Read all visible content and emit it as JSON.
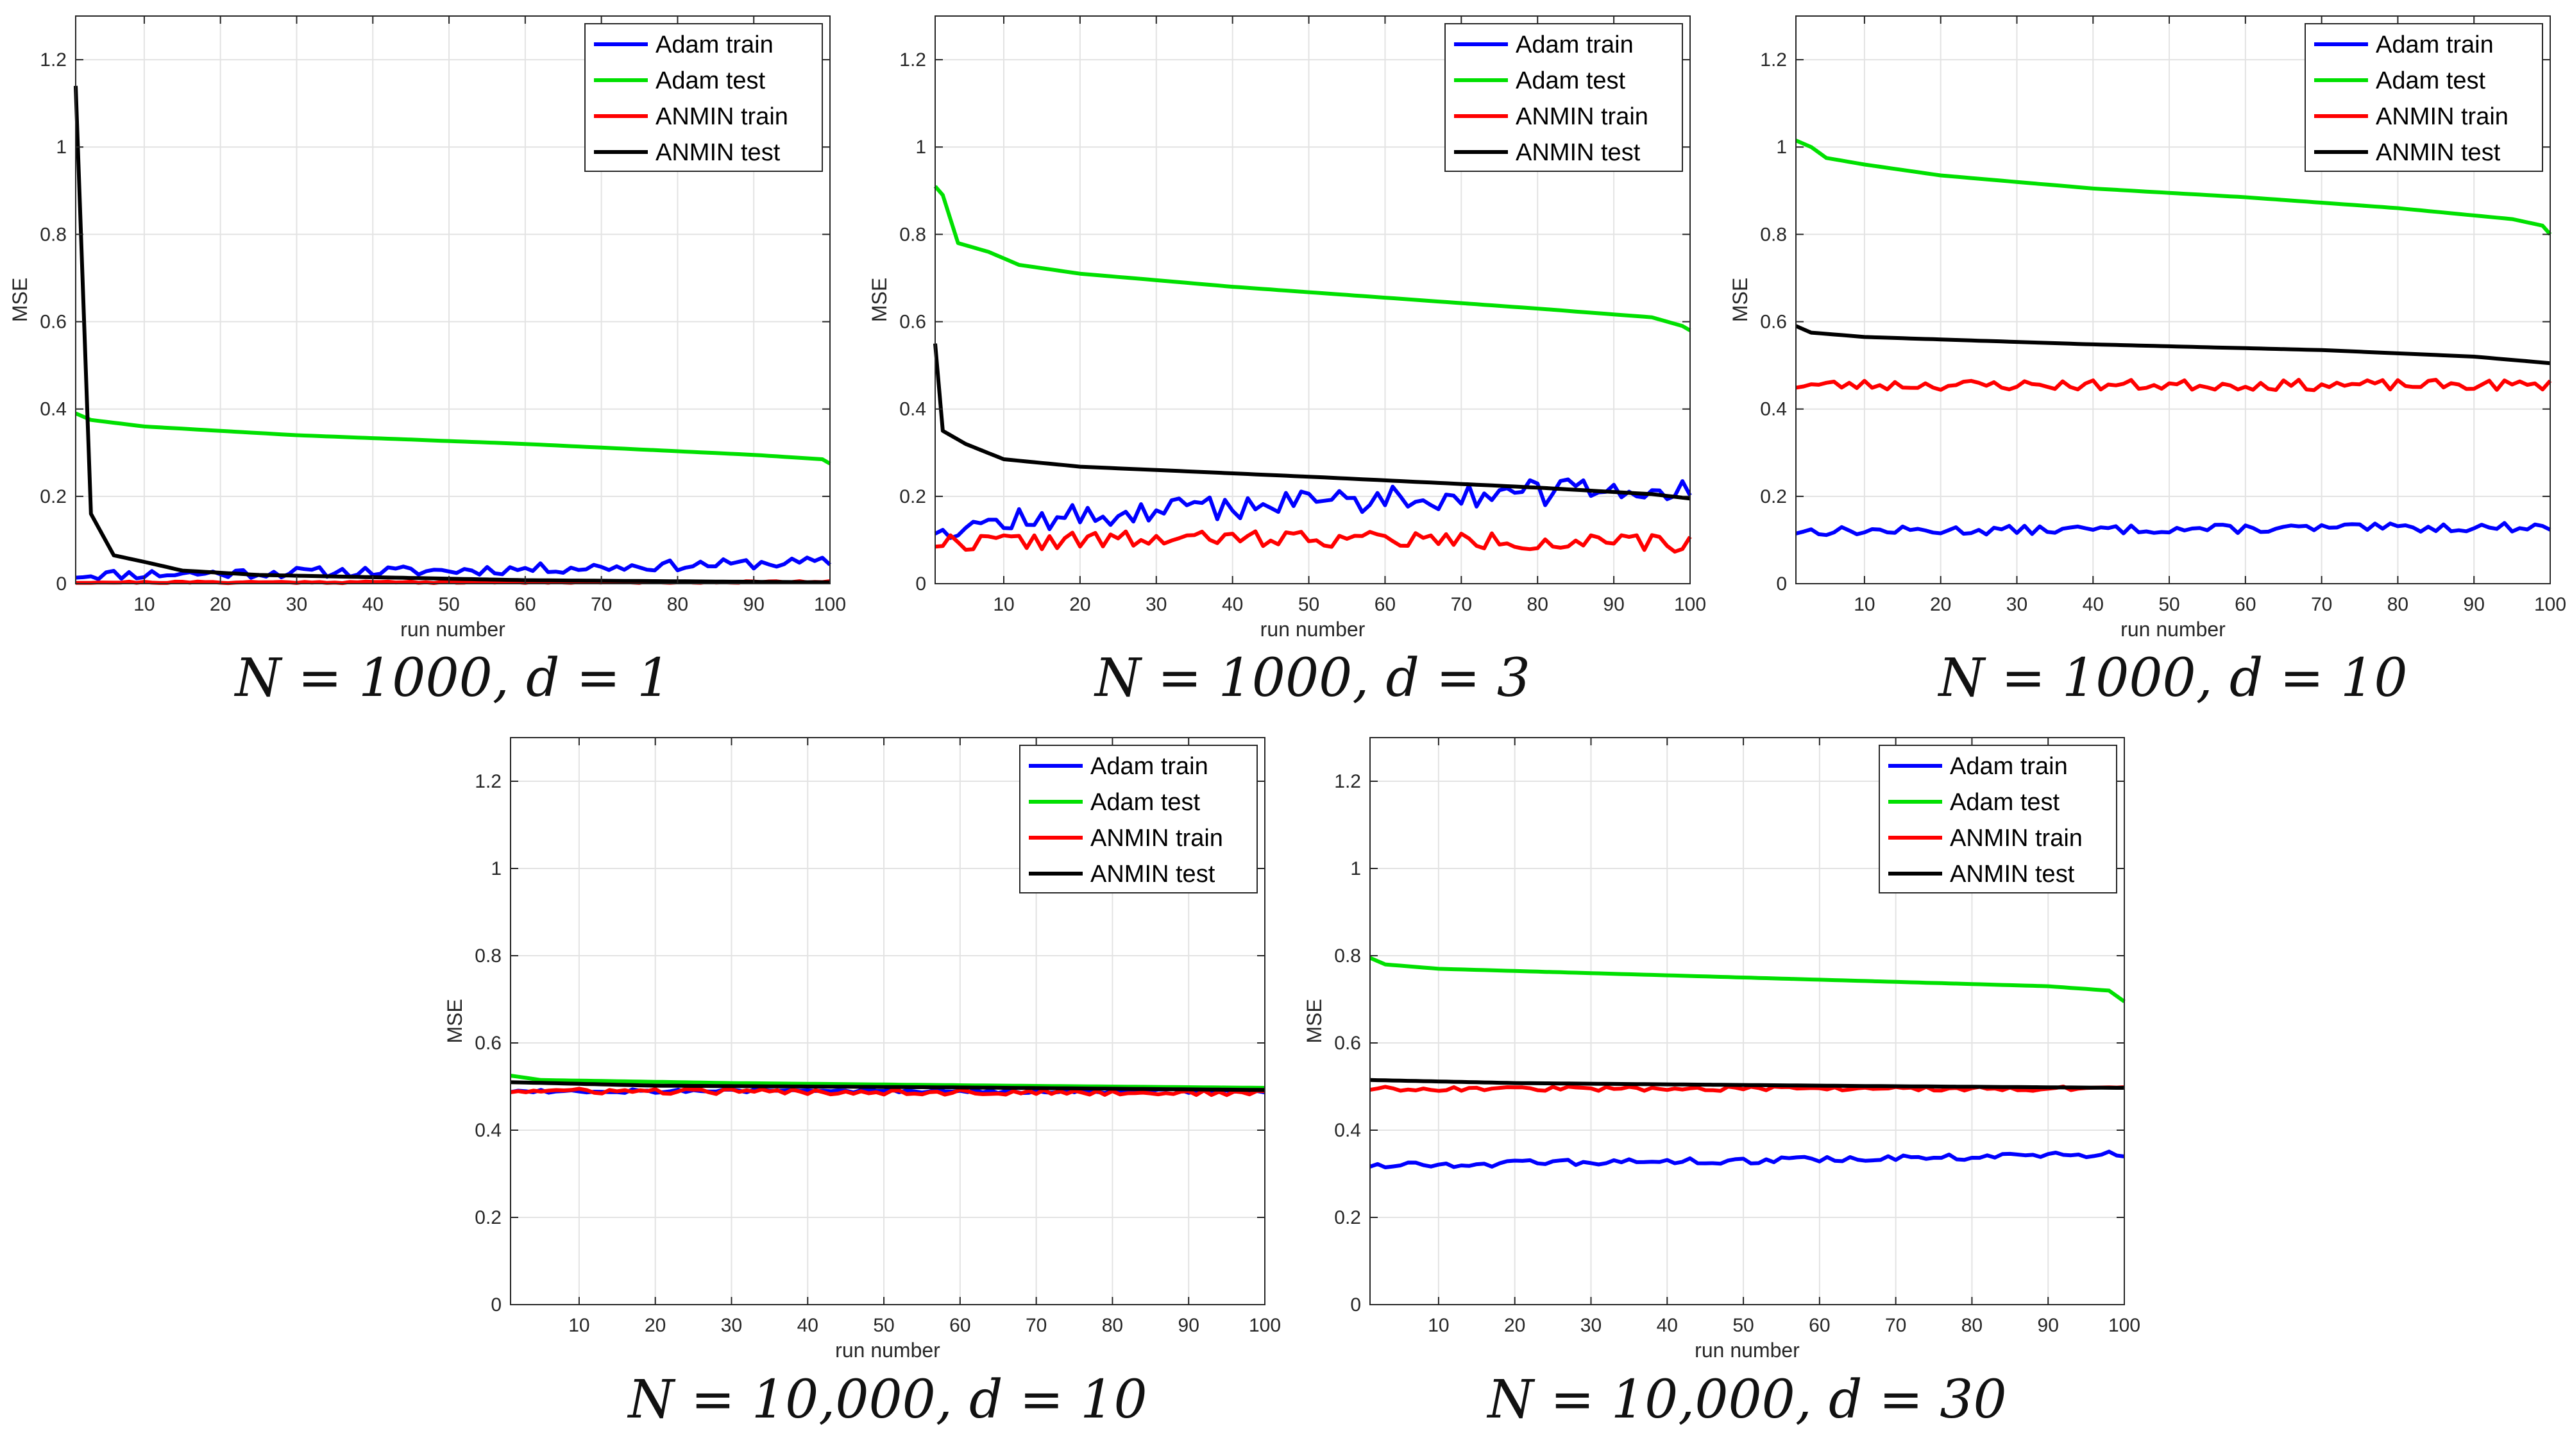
{
  "chart_data": [
    {
      "type": "line",
      "caption": "N = 1000, d = 1",
      "xlabel": "run number",
      "ylabel": "MSE",
      "xlim": [
        1,
        100
      ],
      "ylim": [
        0,
        1.3
      ],
      "xticks": [
        10,
        20,
        30,
        40,
        50,
        60,
        70,
        80,
        90,
        100
      ],
      "yticks": [
        0,
        0.2,
        0.4,
        0.6,
        0.8,
        1,
        1.2
      ],
      "grid": true,
      "legend_position": "top-right",
      "series": [
        {
          "name": "Adam train",
          "color": "#0000ff",
          "noise": 0.012,
          "seed": 11,
          "keypoints": [
            [
              1,
              0.02
            ],
            [
              50,
              0.03
            ],
            [
              100,
              0.05
            ]
          ]
        },
        {
          "name": "Adam test",
          "color": "#00e000",
          "noise": 0,
          "seed": 0,
          "keypoints": [
            [
              1,
              0.39
            ],
            [
              3,
              0.375
            ],
            [
              10,
              0.36
            ],
            [
              30,
              0.34
            ],
            [
              60,
              0.32
            ],
            [
              90,
              0.295
            ],
            [
              99,
              0.285
            ],
            [
              100,
              0.275
            ]
          ]
        },
        {
          "name": "ANMIN train",
          "color": "#ff0000",
          "noise": 0.002,
          "seed": 21,
          "keypoints": [
            [
              1,
              0.003
            ],
            [
              100,
              0.004
            ]
          ]
        },
        {
          "name": "ANMIN test",
          "color": "#000000",
          "noise": 0,
          "seed": 0,
          "keypoints": [
            [
              1,
              1.14
            ],
            [
              3,
              0.16
            ],
            [
              6,
              0.065
            ],
            [
              10,
              0.05
            ],
            [
              15,
              0.03
            ],
            [
              25,
              0.02
            ],
            [
              60,
              0.008
            ],
            [
              100,
              0.003
            ]
          ]
        }
      ]
    },
    {
      "type": "line",
      "caption": "N = 1000, d = 3",
      "xlabel": "run number",
      "ylabel": "MSE",
      "xlim": [
        1,
        100
      ],
      "ylim": [
        0,
        1.3
      ],
      "xticks": [
        10,
        20,
        30,
        40,
        50,
        60,
        70,
        80,
        90,
        100
      ],
      "yticks": [
        0,
        0.2,
        0.4,
        0.6,
        0.8,
        1,
        1.2
      ],
      "grid": true,
      "legend_position": "top-right",
      "series": [
        {
          "name": "Adam train",
          "color": "#0000ff",
          "noise": 0.03,
          "seed": 12,
          "keypoints": [
            [
              1,
              0.13
            ],
            [
              50,
              0.19
            ],
            [
              100,
              0.22
            ]
          ]
        },
        {
          "name": "Adam test",
          "color": "#00e000",
          "noise": 0,
          "seed": 0,
          "keypoints": [
            [
              1,
              0.91
            ],
            [
              2,
              0.89
            ],
            [
              4,
              0.78
            ],
            [
              8,
              0.76
            ],
            [
              12,
              0.73
            ],
            [
              20,
              0.71
            ],
            [
              40,
              0.68
            ],
            [
              60,
              0.655
            ],
            [
              80,
              0.63
            ],
            [
              95,
              0.61
            ],
            [
              99,
              0.59
            ],
            [
              100,
              0.58
            ]
          ]
        },
        {
          "name": "ANMIN train",
          "color": "#ff0000",
          "noise": 0.02,
          "seed": 22,
          "keypoints": [
            [
              1,
              0.095
            ],
            [
              50,
              0.105
            ],
            [
              100,
              0.09
            ]
          ]
        },
        {
          "name": "ANMIN test",
          "color": "#000000",
          "noise": 0,
          "seed": 0,
          "keypoints": [
            [
              1,
              0.55
            ],
            [
              2,
              0.35
            ],
            [
              5,
              0.32
            ],
            [
              10,
              0.285
            ],
            [
              20,
              0.268
            ],
            [
              50,
              0.245
            ],
            [
              80,
              0.22
            ],
            [
              95,
              0.205
            ],
            [
              100,
              0.195
            ]
          ]
        }
      ]
    },
    {
      "type": "line",
      "caption": "N = 1000, d = 10",
      "xlabel": "run number",
      "ylabel": "MSE",
      "xlim": [
        1,
        100
      ],
      "ylim": [
        0,
        1.3
      ],
      "xticks": [
        10,
        20,
        30,
        40,
        50,
        60,
        70,
        80,
        90,
        100
      ],
      "yticks": [
        0,
        0.2,
        0.4,
        0.6,
        0.8,
        1,
        1.2
      ],
      "grid": true,
      "legend_position": "top-right",
      "series": [
        {
          "name": "Adam train",
          "color": "#0000ff",
          "noise": 0.01,
          "seed": 13,
          "keypoints": [
            [
              1,
              0.12
            ],
            [
              100,
              0.13
            ]
          ]
        },
        {
          "name": "Adam test",
          "color": "#00e000",
          "noise": 0,
          "seed": 0,
          "keypoints": [
            [
              1,
              1.015
            ],
            [
              3,
              1.0
            ],
            [
              5,
              0.975
            ],
            [
              10,
              0.96
            ],
            [
              20,
              0.935
            ],
            [
              40,
              0.905
            ],
            [
              60,
              0.885
            ],
            [
              80,
              0.86
            ],
            [
              95,
              0.835
            ],
            [
              99,
              0.82
            ],
            [
              100,
              0.8
            ]
          ]
        },
        {
          "name": "ANMIN train",
          "color": "#ff0000",
          "noise": 0.012,
          "seed": 23,
          "keypoints": [
            [
              1,
              0.455
            ],
            [
              100,
              0.455
            ]
          ]
        },
        {
          "name": "ANMIN test",
          "color": "#000000",
          "noise": 0,
          "seed": 0,
          "keypoints": [
            [
              1,
              0.59
            ],
            [
              3,
              0.575
            ],
            [
              10,
              0.565
            ],
            [
              40,
              0.548
            ],
            [
              70,
              0.535
            ],
            [
              90,
              0.52
            ],
            [
              100,
              0.505
            ]
          ]
        }
      ]
    },
    {
      "type": "line",
      "caption": "N = 10,000, d = 10",
      "xlabel": "run number",
      "ylabel": "MSE",
      "xlim": [
        1,
        100
      ],
      "ylim": [
        0,
        1.3
      ],
      "xticks": [
        10,
        20,
        30,
        40,
        50,
        60,
        70,
        80,
        90,
        100
      ],
      "yticks": [
        0,
        0.2,
        0.4,
        0.6,
        0.8,
        1,
        1.2
      ],
      "grid": true,
      "legend_position": "top-right",
      "series": [
        {
          "name": "Adam train",
          "color": "#0000ff",
          "noise": 0.005,
          "seed": 14,
          "keypoints": [
            [
              1,
              0.49
            ],
            [
              100,
              0.49
            ]
          ]
        },
        {
          "name": "Adam test",
          "color": "#00e000",
          "noise": 0,
          "seed": 0,
          "keypoints": [
            [
              1,
              0.525
            ],
            [
              5,
              0.515
            ],
            [
              30,
              0.508
            ],
            [
              60,
              0.503
            ],
            [
              100,
              0.497
            ]
          ]
        },
        {
          "name": "ANMIN train",
          "color": "#ff0000",
          "noise": 0.006,
          "seed": 24,
          "keypoints": [
            [
              1,
              0.49
            ],
            [
              100,
              0.485
            ]
          ]
        },
        {
          "name": "ANMIN test",
          "color": "#000000",
          "noise": 0,
          "seed": 0,
          "keypoints": [
            [
              1,
              0.51
            ],
            [
              20,
              0.502
            ],
            [
              60,
              0.498
            ],
            [
              100,
              0.492
            ]
          ]
        }
      ]
    },
    {
      "type": "line",
      "caption": "N = 10,000, d = 30",
      "xlabel": "run number",
      "ylabel": "MSE",
      "xlim": [
        1,
        100
      ],
      "ylim": [
        0,
        1.3
      ],
      "xticks": [
        10,
        20,
        30,
        40,
        50,
        60,
        70,
        80,
        90,
        100
      ],
      "yticks": [
        0,
        0.2,
        0.4,
        0.6,
        0.8,
        1,
        1.2
      ],
      "grid": true,
      "legend_position": "top-right",
      "series": [
        {
          "name": "Adam train",
          "color": "#0000ff",
          "noise": 0.007,
          "seed": 15,
          "keypoints": [
            [
              1,
              0.32
            ],
            [
              50,
              0.33
            ],
            [
              100,
              0.345
            ]
          ]
        },
        {
          "name": "Adam test",
          "color": "#00e000",
          "noise": 0,
          "seed": 0,
          "keypoints": [
            [
              1,
              0.795
            ],
            [
              3,
              0.78
            ],
            [
              10,
              0.77
            ],
            [
              30,
              0.76
            ],
            [
              50,
              0.75
            ],
            [
              70,
              0.74
            ],
            [
              90,
              0.73
            ],
            [
              98,
              0.72
            ],
            [
              100,
              0.695
            ]
          ]
        },
        {
          "name": "ANMIN train",
          "color": "#ff0000",
          "noise": 0.005,
          "seed": 25,
          "keypoints": [
            [
              1,
              0.495
            ],
            [
              100,
              0.495
            ]
          ]
        },
        {
          "name": "ANMIN test",
          "color": "#000000",
          "noise": 0,
          "seed": 0,
          "keypoints": [
            [
              1,
              0.515
            ],
            [
              20,
              0.508
            ],
            [
              60,
              0.502
            ],
            [
              100,
              0.497
            ]
          ]
        }
      ]
    }
  ]
}
